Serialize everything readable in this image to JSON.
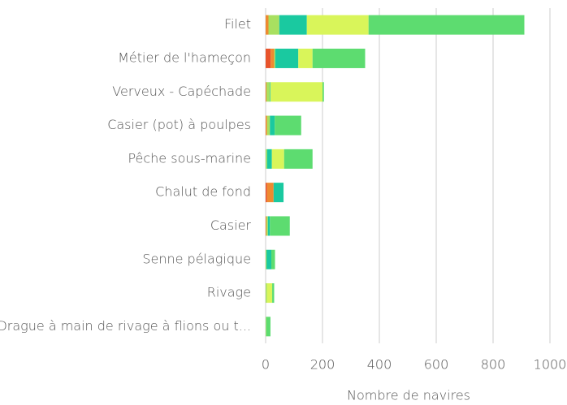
{
  "chart_data": {
    "type": "bar",
    "orientation": "horizontal",
    "stacked": true,
    "x_label": "Nombre de navires",
    "categories": [
      "Filet",
      "Métier de l'hameçon",
      "Verveux - Capéchade",
      "Casier (pot) à poulpes",
      "Pêche sous-marine",
      "Chalut de fond",
      "Casier",
      "Senne pélagique",
      "Rivage",
      "Drague à main de rivage à flions ou t..."
    ],
    "series": [
      {
        "color": "#e8542c",
        "values": [
          0,
          18,
          0,
          0,
          0,
          5,
          0,
          0,
          0,
          0
        ]
      },
      {
        "color": "#ee8a30",
        "values": [
          10,
          12,
          3,
          5,
          0,
          23,
          3,
          0,
          0,
          0
        ]
      },
      {
        "color": "#a8e060",
        "values": [
          38,
          4,
          12,
          10,
          5,
          0,
          5,
          3,
          5,
          2
        ]
      },
      {
        "color": "#1ac9a0",
        "values": [
          97,
          81,
          2,
          17,
          17,
          35,
          7,
          17,
          0,
          0
        ]
      },
      {
        "color": "#d9f55a",
        "values": [
          217,
          50,
          183,
          0,
          43,
          0,
          0,
          0,
          18,
          0
        ]
      },
      {
        "color": "#5ddc70",
        "values": [
          548,
          185,
          5,
          93,
          100,
          0,
          70,
          13,
          7,
          15
        ]
      }
    ],
    "xlim": [
      0,
      1000
    ],
    "xticks": [
      0,
      200,
      400,
      600,
      800,
      1000
    ],
    "grid": true
  }
}
